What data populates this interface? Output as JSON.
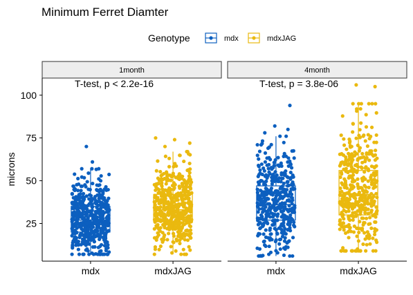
{
  "chart_data": {
    "type": "boxplot-jitter",
    "title": "Minimum Ferret Diamter",
    "xlabel": "",
    "ylabel": "microns",
    "ylim": [
      3,
      110
    ],
    "yticks": [
      25,
      50,
      75,
      100
    ],
    "legend": {
      "title": "Genotype",
      "position": "top",
      "entries": [
        {
          "name": "mdx",
          "color": "#0c5fbf"
        },
        {
          "name": "mdxJAG",
          "color": "#eab90f"
        }
      ]
    },
    "categories": [
      "mdx",
      "mdxJAG"
    ],
    "panels": [
      {
        "label": "1month",
        "annotation": "T-test, p < 2.2e-16",
        "boxes": [
          {
            "group": "mdx",
            "min": 7,
            "q1": 20,
            "median": 27,
            "q3": 35,
            "max": 57,
            "outliers": [
              61,
              70
            ],
            "n": 520
          },
          {
            "group": "mdxJAG",
            "min": 7,
            "q1": 26,
            "median": 33,
            "q3": 42,
            "max": 67,
            "outliers": [
              70,
              72,
              74,
              75
            ],
            "n": 520
          }
        ]
      },
      {
        "label": "4month",
        "annotation": "T-test, p = 3.8e-06",
        "boxes": [
          {
            "group": "mdx",
            "min": 6,
            "q1": 27,
            "median": 36,
            "q3": 47,
            "max": 76,
            "outliers": [
              78,
              80,
              82,
              94
            ],
            "n": 420
          },
          {
            "group": "mdxJAG",
            "min": 9,
            "q1": 30,
            "median": 42,
            "q3": 56,
            "max": 95,
            "outliers": [
              105,
              106
            ],
            "n": 420
          }
        ]
      }
    ]
  },
  "colors": {
    "mdx": "#0c5fbf",
    "mdxJAG": "#eab90f",
    "strip_fill": "#eeeeee",
    "axis": "#000000"
  }
}
